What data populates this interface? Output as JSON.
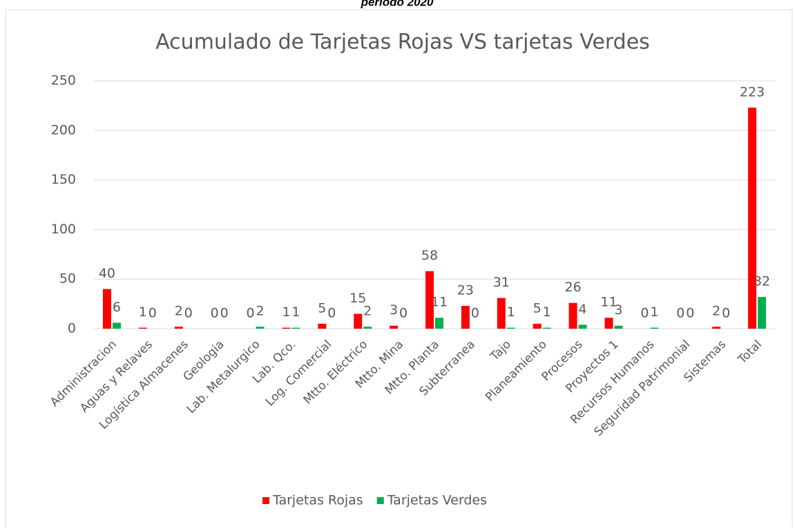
{
  "chart_data": {
    "type": "bar",
    "caption": "periodo 2020",
    "title": "Acumulado de Tarjetas Rojas VS tarjetas Verdes",
    "categories": [
      "Administracion",
      "Aguas y Relaves",
      "Logística Almacenes",
      "Geologia",
      "Lab. Metalurgico",
      "Lab. Qco.",
      "Log. Comercial",
      "Mtto. Eléctrico",
      "Mtto. Mina",
      "Mtto. Planta",
      "Subterranea",
      "Tajo",
      "Planeamiento",
      "Procesos",
      "Proyectos 1",
      "Recursos Humanos",
      "Seguridad Patrimonial",
      "Sistemas",
      "Total"
    ],
    "series": [
      {
        "name": "Tarjetas Rojas",
        "color": "#ff0000",
        "values": [
          40,
          1,
          2,
          0,
          0,
          1,
          5,
          15,
          3,
          58,
          23,
          31,
          5,
          26,
          11,
          0,
          0,
          2,
          223
        ]
      },
      {
        "name": "Tarjetas Verdes",
        "color": "#00b050",
        "values": [
          6,
          0,
          0,
          0,
          2,
          1,
          0,
          2,
          0,
          11,
          0,
          1,
          1,
          4,
          3,
          1,
          0,
          0,
          32
        ]
      }
    ],
    "ylim": [
      0,
      250
    ],
    "yticks": [
      0,
      50,
      100,
      150,
      200,
      250
    ],
    "grid": true,
    "legend": "bottom"
  }
}
